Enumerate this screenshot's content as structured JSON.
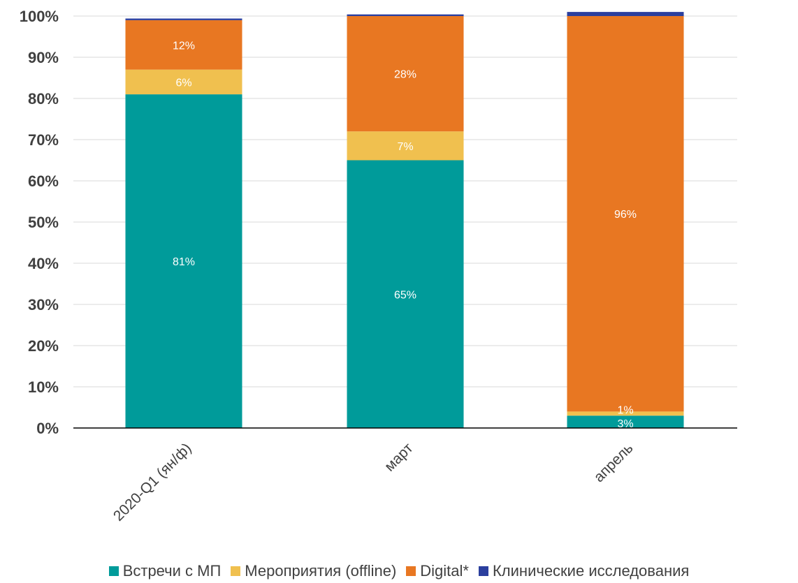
{
  "chart_data": {
    "type": "bar",
    "stacked": true,
    "categories": [
      "2020-Q1 (ян/ф)",
      "март",
      "апрель"
    ],
    "series": [
      {
        "name": "Встречи с МП",
        "color": "#009B9A",
        "values": [
          81,
          65,
          3
        ],
        "labels": [
          "81%",
          "65%",
          "3%"
        ]
      },
      {
        "name": "Мероприятия (offline)",
        "color": "#F0C04F",
        "values": [
          6,
          7,
          1
        ],
        "labels": [
          "6%",
          "7%",
          "1%"
        ]
      },
      {
        "name": "Digital*",
        "color": "#E87722",
        "values": [
          12,
          28,
          96
        ],
        "labels": [
          "12%",
          "28%",
          "96%"
        ]
      },
      {
        "name": "Клинические исследования",
        "color": "#2B3F9E",
        "values": [
          0.4,
          0.4,
          1
        ],
        "labels": [
          "",
          "",
          ""
        ]
      }
    ],
    "yticks": [
      "0%",
      "10%",
      "20%",
      "30%",
      "40%",
      "50%",
      "60%",
      "70%",
      "80%",
      "90%",
      "100%"
    ],
    "ylim": [
      0,
      100
    ],
    "grid": true,
    "legend_position": "bottom"
  }
}
